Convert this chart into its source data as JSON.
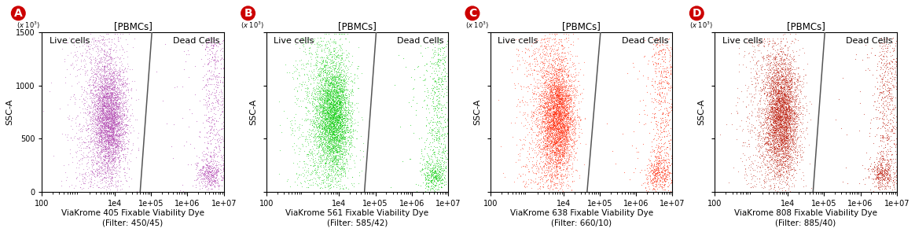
{
  "panels": [
    {
      "label": "A",
      "title": "[PBMCs]",
      "xlabel": "ViaKrome 405 Fixable Viability Dye\n(Filter: 450/45)",
      "ylabel": "SSC-A",
      "dot_color": "#b040b0",
      "gate_x1": 50000.0,
      "gate_x2": 105000.0
    },
    {
      "label": "B",
      "title": "[PBMCs]",
      "xlabel": "ViaKrome 561 Fixable Viability Dye\n(Filter: 585/42)",
      "ylabel": "SSC-A",
      "dot_color": "#00cc00",
      "gate_x1": 50000.0,
      "gate_x2": 105000.0
    },
    {
      "label": "C",
      "title": "[PBMCs]",
      "xlabel": "ViaKrome 638 Fixable Viability Dye\n(Filter: 660/10)",
      "ylabel": "SSC-A",
      "dot_color": "#ff2200",
      "gate_x1": 45000.0,
      "gate_x2": 105000.0
    },
    {
      "label": "D",
      "title": "[PBMCs]",
      "xlabel": "ViaKrome 808 Fixable Viability Dye\n(Filter: 885/40)",
      "ylabel": "SSC-A",
      "dot_color": "#bb1100",
      "gate_x1": 50000.0,
      "gate_x2": 105000.0
    }
  ],
  "xlim": [
    100,
    10000000.0
  ],
  "ylim": [
    0,
    1500
  ],
  "xticks": [
    100,
    10000.0,
    100000.0,
    1000000.0,
    10000000.0
  ],
  "yticks": [
    0,
    500,
    1000,
    1500
  ],
  "live_label": "Live cells",
  "dead_label": "Dead Cells",
  "n_live": 5000,
  "n_dead": 900,
  "label_color": "#cc0000"
}
